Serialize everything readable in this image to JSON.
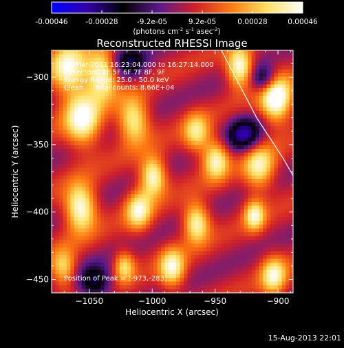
{
  "colorbar": {
    "tick_labels": [
      "-0.00046",
      "-0.00028",
      "-9.2e-05",
      "9.2e-05",
      "0.00028",
      "0.00046"
    ],
    "unit_label_main": "(photons cm",
    "unit_label_exp1": "-2",
    "unit_label_mid": " s",
    "unit_label_exp2": "-1",
    "unit_label_tail": " asec",
    "unit_label_exp3": "-2",
    "unit_label_close": ")",
    "range": [
      -0.00046,
      0.00046
    ],
    "colors": [
      "#0000ff",
      "#3300aa",
      "#000000",
      "#5a1a8c",
      "#d0202a",
      "#ff7a10",
      "#ffe060",
      "#ffffff"
    ]
  },
  "chart_data": {
    "type": "heatmap",
    "title": "Reconstructed RHESSI Image",
    "xlabel": "Heliocentric X (arcsec)",
    "ylabel": "Heliocentric Y (arcsec)",
    "xlim": [
      -1080,
      -888
    ],
    "ylim": [
      -460,
      -280
    ],
    "x_ticks": [
      -1050,
      -1000,
      -950,
      -900
    ],
    "y_ticks": [
      -450,
      -400,
      -350,
      -300
    ],
    "x_tick_labels": [
      "−1050",
      "−1000",
      "−950",
      "−900"
    ],
    "y_tick_labels": [
      "−450",
      "−400",
      "−350",
      "−300"
    ],
    "annotations": [
      "21-Mar-2011 16:23:04.000 to 16:27:14.000",
      "Detectors: 4F 5F 6F 7F 8F, 9F",
      "Energy Range: 25.0 - 50.0 keV",
      "Clean     Total counts: 8.66E+04"
    ],
    "peak_label": "Position of Peak = [-973,-283]",
    "limb_points": [
      [
        -945,
        -280
      ],
      [
        -917,
        -330
      ],
      [
        -896,
        -360
      ],
      [
        -888,
        -373
      ]
    ]
  },
  "footer": {
    "date": "15-Aug-2013 22:01"
  }
}
